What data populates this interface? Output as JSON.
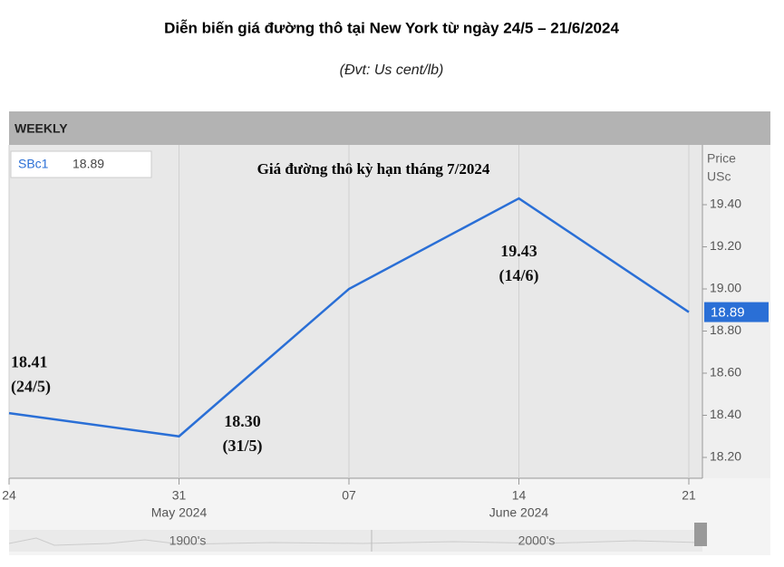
{
  "chart_data": {
    "type": "line",
    "title": "Diễn biến giá đường thô tại New York từ ngày 24/5 – 21/6/2024",
    "subtitle": "(Đvt: Us cent/lb)",
    "panel_label": "WEEKLY",
    "annotation": "Giá đường thô kỳ hạn tháng 7/2024",
    "y_axis_label": [
      "Price",
      "USc"
    ],
    "categories": [
      "24",
      "31",
      "07",
      "14",
      "21"
    ],
    "month_labels": [
      null,
      "May 2024",
      null,
      "June 2024",
      null
    ],
    "series": [
      {
        "name": "SBc1",
        "color": "#2a6fd6",
        "values": [
          18.41,
          18.3,
          19.0,
          19.43,
          18.89
        ],
        "value_labels": [
          "18.41",
          "18.30",
          null,
          "19.43",
          null
        ],
        "date_labels": [
          "(24/5)",
          "(31/5)",
          null,
          "(14/6)",
          null
        ]
      }
    ],
    "ylim": [
      18.1,
      19.7
    ],
    "yticks": [
      {
        "value": 18.2,
        "label": "18.20"
      },
      {
        "value": 18.4,
        "label": "18.40"
      },
      {
        "value": 18.6,
        "label": "18.60"
      },
      {
        "value": 18.8,
        "label": "18.80"
      },
      {
        "value": 19.0,
        "label": "19.00"
      },
      {
        "value": 19.2,
        "label": "19.20"
      },
      {
        "value": 19.4,
        "label": "19.40"
      }
    ],
    "navigator_labels": [
      "1900's",
      "2000's"
    ],
    "grid": true
  }
}
